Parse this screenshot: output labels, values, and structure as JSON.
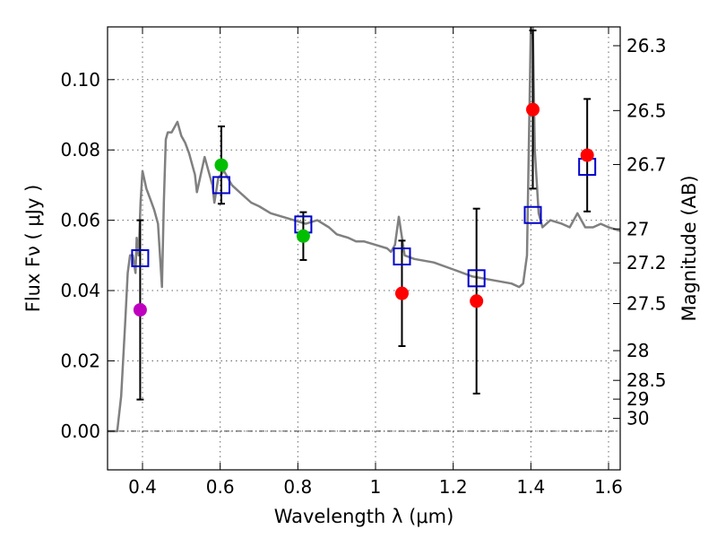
{
  "chart_data": {
    "type": "scatter",
    "title": "",
    "xlabel": "Wavelength  λ (μm)",
    "ylabel": "Flux  Fν  ( μJy )",
    "y2label": "Magnitude (AB)",
    "xlim": [
      0.31,
      1.63
    ],
    "ylim": [
      -0.011,
      0.115
    ],
    "grid": true,
    "xticks": [
      0.4,
      0.6,
      0.8,
      1.0,
      1.2,
      1.4,
      1.6
    ],
    "xtick_labels": [
      "0.4",
      "0.6",
      "0.8",
      "1",
      "1.2",
      "1.4",
      "1.6"
    ],
    "yticks": [
      0.0,
      0.02,
      0.04,
      0.06,
      0.08,
      0.1
    ],
    "ytick_labels": [
      "0.00",
      "0.02",
      "0.04",
      "0.06",
      "0.08",
      "0.10"
    ],
    "magnitude_ticks": [
      26.3,
      26.5,
      26.7,
      27,
      27.2,
      27.5,
      28,
      28.5,
      29,
      30
    ],
    "magnitude_tick_labels": [
      "26.3",
      "26.5",
      "26.7",
      "27",
      "27.2",
      "27.5",
      "28",
      "28.5",
      "29",
      "30"
    ],
    "series": [
      {
        "kind": "observed",
        "points": [
          {
            "x": 0.394,
            "y": 0.0345,
            "yerr": 0.0255,
            "color": "#bf00bf"
          },
          {
            "x": 0.603,
            "y": 0.0757,
            "yerr": 0.011,
            "color": "#00bf00"
          },
          {
            "x": 0.814,
            "y": 0.0555,
            "yerr": 0.0068,
            "color": "#00bf00"
          },
          {
            "x": 1.068,
            "y": 0.0392,
            "yerr": 0.015,
            "color": "#ff0000"
          },
          {
            "x": 1.26,
            "y": 0.037,
            "yerr": 0.0263,
            "color": "#ff0000"
          },
          {
            "x": 1.405,
            "y": 0.0915,
            "yerr": 0.0225,
            "color": "#ff0000"
          },
          {
            "x": 1.545,
            "y": 0.0785,
            "yerr": 0.016,
            "color": "#ff0000"
          }
        ]
      },
      {
        "kind": "model-band",
        "color": "#0000cc",
        "points": [
          {
            "x": 0.394,
            "y": 0.0492
          },
          {
            "x": 0.603,
            "y": 0.07
          },
          {
            "x": 0.814,
            "y": 0.0588
          },
          {
            "x": 1.068,
            "y": 0.0497
          },
          {
            "x": 1.26,
            "y": 0.0435
          },
          {
            "x": 1.405,
            "y": 0.0615
          },
          {
            "x": 1.545,
            "y": 0.0752
          }
        ]
      },
      {
        "kind": "template-spectrum",
        "color": "#808080",
        "x": [
          0.31,
          0.335,
          0.345,
          0.355,
          0.362,
          0.368,
          0.375,
          0.382,
          0.385,
          0.39,
          0.395,
          0.4,
          0.41,
          0.42,
          0.43,
          0.44,
          0.45,
          0.455,
          0.46,
          0.465,
          0.475,
          0.49,
          0.5,
          0.51,
          0.52,
          0.53,
          0.535,
          0.54,
          0.56,
          0.575,
          0.58,
          0.585,
          0.595,
          0.61,
          0.62,
          0.63,
          0.65,
          0.68,
          0.7,
          0.73,
          0.76,
          0.79,
          0.82,
          0.85,
          0.88,
          0.9,
          0.93,
          0.95,
          0.97,
          1.0,
          1.03,
          1.04,
          1.05,
          1.06,
          1.075,
          1.1,
          1.15,
          1.2,
          1.25,
          1.3,
          1.35,
          1.37,
          1.38,
          1.39,
          1.4,
          1.405,
          1.41,
          1.42,
          1.43,
          1.45,
          1.48,
          1.5,
          1.52,
          1.54,
          1.56,
          1.58,
          1.6,
          1.63
        ],
        "y": [
          0.0,
          0.0,
          0.01,
          0.03,
          0.045,
          0.05,
          0.05,
          0.045,
          0.055,
          0.05,
          0.065,
          0.074,
          0.069,
          0.066,
          0.063,
          0.059,
          0.041,
          0.065,
          0.083,
          0.085,
          0.085,
          0.088,
          0.084,
          0.082,
          0.079,
          0.075,
          0.073,
          0.068,
          0.078,
          0.072,
          0.07,
          0.065,
          0.072,
          0.074,
          0.072,
          0.07,
          0.068,
          0.065,
          0.064,
          0.062,
          0.061,
          0.06,
          0.059,
          0.06,
          0.058,
          0.056,
          0.055,
          0.054,
          0.054,
          0.053,
          0.052,
          0.051,
          0.053,
          0.061,
          0.05,
          0.049,
          0.048,
          0.046,
          0.044,
          0.043,
          0.042,
          0.041,
          0.042,
          0.05,
          0.115,
          0.115,
          0.08,
          0.062,
          0.058,
          0.06,
          0.059,
          0.058,
          0.062,
          0.058,
          0.058,
          0.059,
          0.058,
          0.057
        ]
      }
    ]
  }
}
